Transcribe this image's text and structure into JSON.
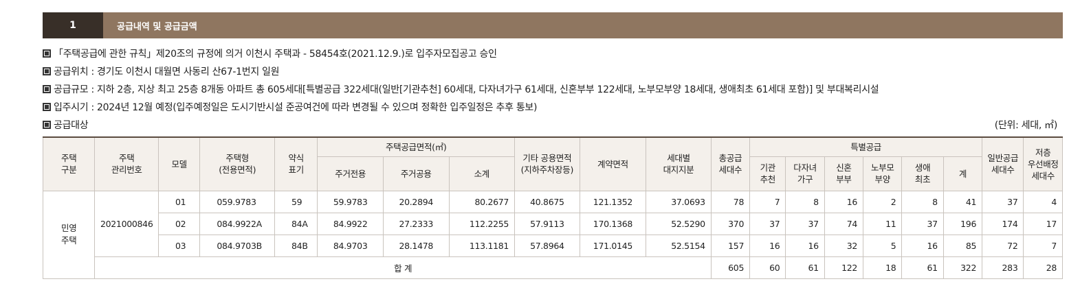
{
  "header": {
    "number": "1",
    "title": "공급내역 및 공급금액"
  },
  "info": {
    "line1": "「주택공급에 관한 규칙」제20조의 규정에 의거 이천시 주택과 - 58454호(2021.12.9.)로 입주자모집공고 승인",
    "line2": "공급위치 : 경기도 이천시 대월면 사동리 산67-1번지 일원",
    "line3": "공급규모 : 지하 2층, 지상 최고 25층 8개동 아파트 총 605세대[특별공급 322세대(일반[기관추천] 60세대, 다자녀가구 61세대, 신혼부부 122세대, 노부모부양 18세대, 생애최초 61세대 포함)] 및 부대복리시설",
    "line4": "입주시기 : 2024년 12월 예정(입주예정일은 도시기반시설 준공여건에 따라 변경될 수 있으며 정확한 입주일정은 추후 통보)",
    "line5": "공급대상",
    "unit": "(단위: 세대, ㎡)"
  },
  "table": {
    "headers": {
      "housing_type": "주택\n구분",
      "mgmt_no": "주택\n관리번호",
      "model": "모델",
      "house_type": "주택형\n(전용면적)",
      "abbr": "약식\n표기",
      "supply_area": "주택공급면적(㎡)",
      "exclusive": "주거전용",
      "common": "주거공용",
      "subtotal": "소계",
      "other_common": "기타 공용면적\n(지하주차장등)",
      "contract_area": "계약면적",
      "land_share": "세대별\n대지지분",
      "total_units": "총공급\n세대수",
      "special": "특별공급",
      "agency": "기관\n추천",
      "multi_child": "다자녀\n가구",
      "newlywed": "신혼\n부부",
      "elderly": "노부모\n부양",
      "first_time": "생애\n최초",
      "special_total": "계",
      "general": "일반공급\n세대수",
      "low_floor": "저층\n우선배정\n세대수"
    },
    "housing_type_value": "민영\n주택",
    "mgmt_no_value": "2021000846",
    "rows": [
      {
        "model": "01",
        "type": "059.9783",
        "abbr": "59",
        "exclusive": "59.9783",
        "common": "20.2894",
        "subtotal": "80.2677",
        "other": "40.8675",
        "contract": "121.1352",
        "land": "37.0693",
        "total": "78",
        "agency": "7",
        "multi": "8",
        "newlywed": "16",
        "elderly": "2",
        "first": "8",
        "sp_total": "41",
        "general": "37",
        "low": "4"
      },
      {
        "model": "02",
        "type": "084.9922A",
        "abbr": "84A",
        "exclusive": "84.9922",
        "common": "27.2333",
        "subtotal": "112.2255",
        "other": "57.9113",
        "contract": "170.1368",
        "land": "52.5290",
        "total": "370",
        "agency": "37",
        "multi": "37",
        "newlywed": "74",
        "elderly": "11",
        "first": "37",
        "sp_total": "196",
        "general": "174",
        "low": "17"
      },
      {
        "model": "03",
        "type": "084.9703B",
        "abbr": "84B",
        "exclusive": "84.9703",
        "common": "28.1478",
        "subtotal": "113.1181",
        "other": "57.8964",
        "contract": "171.0145",
        "land": "52.5154",
        "total": "157",
        "agency": "16",
        "multi": "16",
        "newlywed": "32",
        "elderly": "5",
        "first": "16",
        "sp_total": "85",
        "general": "72",
        "low": "7"
      }
    ],
    "total_row": {
      "label": "합 계",
      "total": "605",
      "agency": "60",
      "multi": "61",
      "newlywed": "122",
      "elderly": "18",
      "first": "61",
      "sp_total": "322",
      "general": "283",
      "low": "28"
    }
  }
}
